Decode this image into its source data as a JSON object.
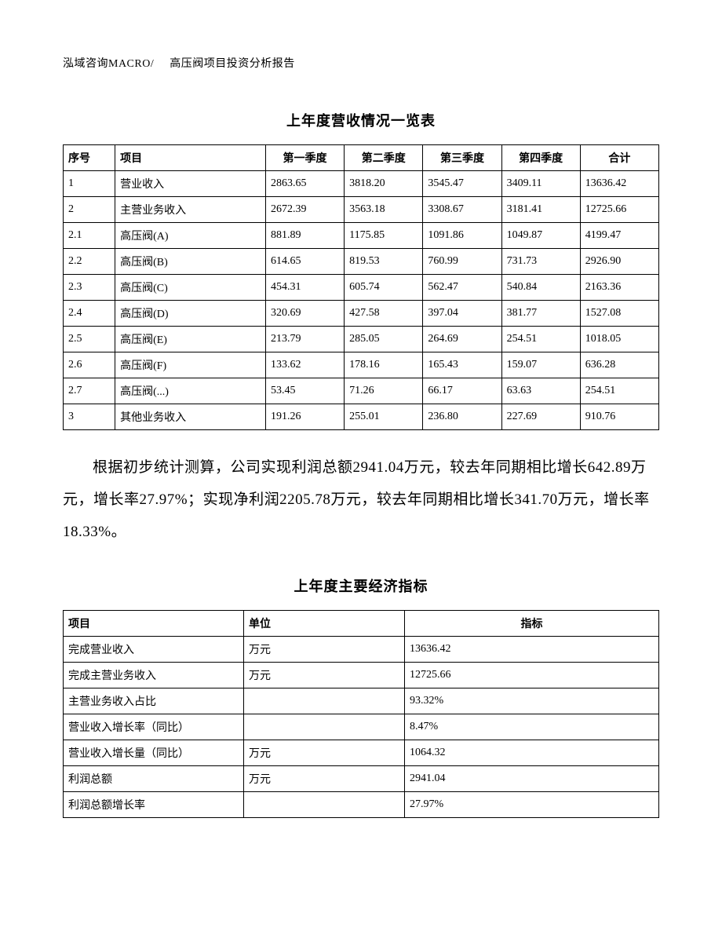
{
  "header": {
    "left": "泓域咨询MACRO/",
    "right": "高压阀项目投资分析报告"
  },
  "table1": {
    "title": "上年度营收情况一览表",
    "columns": [
      "序号",
      "项目",
      "第一季度",
      "第二季度",
      "第三季度",
      "第四季度",
      "合计"
    ],
    "rows": [
      [
        "1",
        "营业收入",
        "2863.65",
        "3818.20",
        "3545.47",
        "3409.11",
        "13636.42"
      ],
      [
        "2",
        "主营业务收入",
        "2672.39",
        "3563.18",
        "3308.67",
        "3181.41",
        "12725.66"
      ],
      [
        "2.1",
        "高压阀(A)",
        "881.89",
        "1175.85",
        "1091.86",
        "1049.87",
        "4199.47"
      ],
      [
        "2.2",
        "高压阀(B)",
        "614.65",
        "819.53",
        "760.99",
        "731.73",
        "2926.90"
      ],
      [
        "2.3",
        "高压阀(C)",
        "454.31",
        "605.74",
        "562.47",
        "540.84",
        "2163.36"
      ],
      [
        "2.4",
        "高压阀(D)",
        "320.69",
        "427.58",
        "397.04",
        "381.77",
        "1527.08"
      ],
      [
        "2.5",
        "高压阀(E)",
        "213.79",
        "285.05",
        "264.69",
        "254.51",
        "1018.05"
      ],
      [
        "2.6",
        "高压阀(F)",
        "133.62",
        "178.16",
        "165.43",
        "159.07",
        "636.28"
      ],
      [
        "2.7",
        "高压阀(...)",
        "53.45",
        "71.26",
        "66.17",
        "63.63",
        "254.51"
      ],
      [
        "3",
        "其他业务收入",
        "191.26",
        "255.01",
        "236.80",
        "227.69",
        "910.76"
      ]
    ]
  },
  "paragraph": "根据初步统计测算，公司实现利润总额2941.04万元，较去年同期相比增长642.89万元，增长率27.97%；实现净利润2205.78万元，较去年同期相比增长341.70万元，增长率18.33%。",
  "table2": {
    "title": "上年度主要经济指标",
    "columns": [
      "项目",
      "单位",
      "指标"
    ],
    "rows": [
      [
        "完成营业收入",
        "万元",
        "13636.42"
      ],
      [
        "完成主营业务收入",
        "万元",
        "12725.66"
      ],
      [
        "主营业务收入占比",
        "",
        "93.32%"
      ],
      [
        "营业收入增长率（同比）",
        "",
        "8.47%"
      ],
      [
        "营业收入增长量（同比）",
        "万元",
        "1064.32"
      ],
      [
        "利润总额",
        "万元",
        "2941.04"
      ],
      [
        "利润总额增长率",
        "",
        "27.97%"
      ]
    ]
  }
}
